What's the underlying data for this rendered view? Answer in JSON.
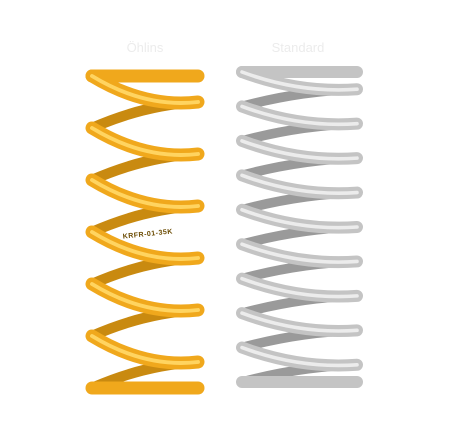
{
  "labels": {
    "left": "Öhlins",
    "right": "Standard"
  },
  "spring_marking": "KRFR-01-35K"
}
